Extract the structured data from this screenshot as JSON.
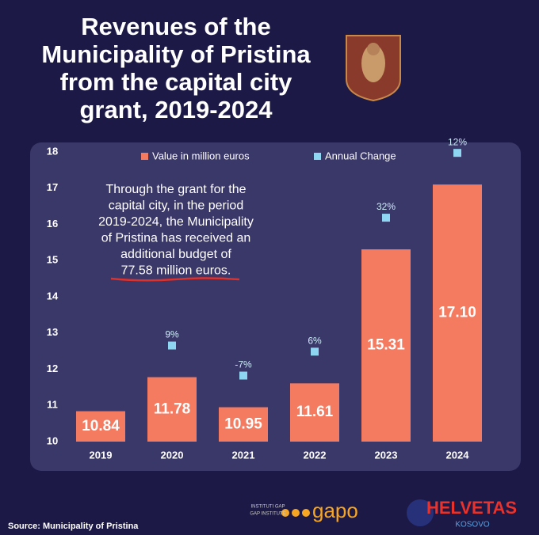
{
  "chart_data": {
    "type": "bar",
    "title": [
      "Revenues of the",
      "Municipality of Pristina",
      "from the capital city",
      "grant, 2019-2024"
    ],
    "categories": [
      "2019",
      "2020",
      "2021",
      "2022",
      "2023",
      "2024"
    ],
    "series": [
      {
        "name": "Value in million euros",
        "color": "#f47a60",
        "values": [
          10.84,
          11.78,
          10.95,
          11.61,
          15.31,
          17.1
        ],
        "value_labels": [
          "10.84",
          "11.78",
          "10.95",
          "11.61",
          "15.31",
          "17.10"
        ]
      },
      {
        "name": "Annual Change",
        "color": "#8fd6f2",
        "values": [
          null,
          9,
          -7,
          6,
          32,
          12
        ],
        "value_labels": [
          null,
          "9%",
          "-7%",
          "6%",
          "32%",
          "12%"
        ]
      }
    ],
    "ylim": [
      10,
      18
    ],
    "yticks": [
      10,
      11,
      12,
      13,
      14,
      15,
      16,
      17,
      18
    ],
    "annotation": [
      "Through the grant for the",
      "capital city, in the period",
      "2019-2024, the Municipality",
      "of Pristina has received an",
      "additional budget of",
      "77.58 million euros."
    ],
    "source": "Source: Municipality of Pristina",
    "logos": {
      "gap_small_1": "INSTITUTI GAP",
      "gap_small_2": "GAP INSTITUTE",
      "gap": "gapo",
      "helvetas": "HELVETAS",
      "helvetas_sub": "KOSOVO"
    }
  }
}
